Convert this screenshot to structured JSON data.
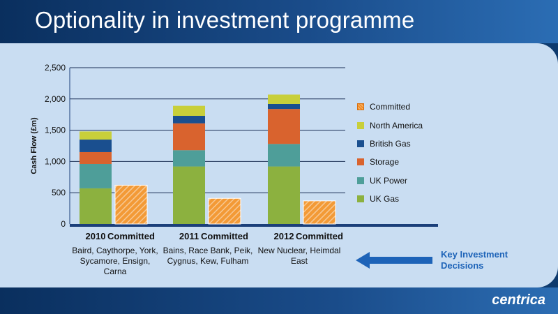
{
  "slide": {
    "title": "Optionality in investment programme",
    "logo_text": "centrica",
    "key_label": "Key Investment Decisions",
    "captions": [
      "Baird, Caythorpe, York, Sycamore, Ensign, Carna",
      "Bains, Race Bank, Peik, Cygnus, Kew, Fulham",
      "New Nuclear, Heimdal East"
    ]
  },
  "colors": {
    "uk_gas": "#8cb13f",
    "uk_power": "#4e9e99",
    "storage": "#d9632e",
    "british_gas": "#1a4f8f",
    "north_america": "#c8cf3a",
    "committed": "#f39a36",
    "axis": "#1b3f7a",
    "accent_text": "#1d63b8"
  },
  "chart_data": {
    "type": "bar",
    "stacked": true,
    "ylabel": "Cash Flow (£m)",
    "ylim": [
      0,
      2500
    ],
    "yticks": [
      0,
      500,
      1000,
      1500,
      2000,
      2500
    ],
    "ytick_labels": [
      "0",
      "500",
      "1,000",
      "1,500",
      "2,000",
      "2,500"
    ],
    "grid": true,
    "legend_position": "right",
    "categories": [
      "2010",
      "Committed",
      "2011",
      "Committed",
      "2012",
      "Committed"
    ],
    "series": [
      {
        "name": "UK Gas",
        "color_key": "uk_gas",
        "values": [
          570,
          0,
          920,
          0,
          920,
          0
        ]
      },
      {
        "name": "UK Power",
        "color_key": "uk_power",
        "values": [
          390,
          0,
          260,
          0,
          360,
          0
        ]
      },
      {
        "name": "Storage",
        "color_key": "storage",
        "values": [
          190,
          0,
          430,
          0,
          560,
          0
        ]
      },
      {
        "name": "British Gas",
        "color_key": "british_gas",
        "values": [
          200,
          0,
          120,
          0,
          80,
          0
        ]
      },
      {
        "name": "North America",
        "color_key": "north_america",
        "values": [
          130,
          0,
          160,
          0,
          150,
          0
        ]
      },
      {
        "name": "Committed",
        "color_key": "committed",
        "values": [
          0,
          620,
          0,
          410,
          0,
          370
        ],
        "hatched": true
      }
    ],
    "legend_order": [
      "Committed",
      "North America",
      "British Gas",
      "Storage",
      "UK Power",
      "UK Gas"
    ]
  }
}
